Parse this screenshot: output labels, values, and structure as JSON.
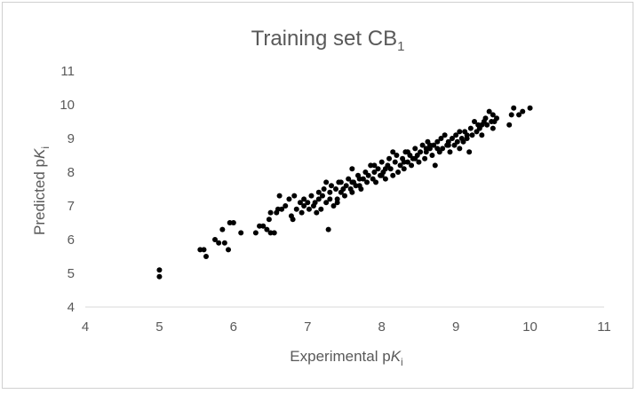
{
  "chart_data": {
    "type": "scatter",
    "title": "Training set CB",
    "title_sub": "1",
    "xlabel": "Experimental p",
    "xlabel_italic": "K",
    "xlabel_sub": "i",
    "ylabel": "Predicted p",
    "ylabel_italic": "K",
    "ylabel_sub": "i",
    "xlim": [
      4,
      11
    ],
    "ylim": [
      4,
      11
    ],
    "xticks": [
      "4",
      "5",
      "6",
      "7",
      "8",
      "9",
      "10",
      "11"
    ],
    "yticks": [
      "4",
      "5",
      "6",
      "7",
      "8",
      "9",
      "10",
      "11"
    ],
    "grid": false,
    "legend": "none",
    "marker_color": "#000000",
    "axis_color": "#d9d9d9",
    "points": [
      [
        5.0,
        5.1
      ],
      [
        5.0,
        4.9
      ],
      [
        5.55,
        5.7
      ],
      [
        5.6,
        5.7
      ],
      [
        5.63,
        5.5
      ],
      [
        5.75,
        6.0
      ],
      [
        5.8,
        5.9
      ],
      [
        5.85,
        6.3
      ],
      [
        5.88,
        5.9
      ],
      [
        5.93,
        5.7
      ],
      [
        5.95,
        6.5
      ],
      [
        6.0,
        6.5
      ],
      [
        6.1,
        6.2
      ],
      [
        6.3,
        6.2
      ],
      [
        6.35,
        6.4
      ],
      [
        6.4,
        6.4
      ],
      [
        6.45,
        6.3
      ],
      [
        6.48,
        6.6
      ],
      [
        6.5,
        6.8
      ],
      [
        6.5,
        6.2
      ],
      [
        6.55,
        6.2
      ],
      [
        6.58,
        6.8
      ],
      [
        6.6,
        6.9
      ],
      [
        6.62,
        7.3
      ],
      [
        6.65,
        6.9
      ],
      [
        6.7,
        7.0
      ],
      [
        6.75,
        7.2
      ],
      [
        6.78,
        6.7
      ],
      [
        6.8,
        6.6
      ],
      [
        6.82,
        7.3
      ],
      [
        6.85,
        6.9
      ],
      [
        6.9,
        7.1
      ],
      [
        6.92,
        6.8
      ],
      [
        6.95,
        7.0
      ],
      [
        7.0,
        7.1
      ],
      [
        7.02,
        6.9
      ],
      [
        7.05,
        7.3
      ],
      [
        7.08,
        7.0
      ],
      [
        7.1,
        7.1
      ],
      [
        7.12,
        6.8
      ],
      [
        7.15,
        7.2
      ],
      [
        7.18,
        6.9
      ],
      [
        7.2,
        7.3
      ],
      [
        7.22,
        7.5
      ],
      [
        7.25,
        7.7
      ],
      [
        7.25,
        7.1
      ],
      [
        7.28,
        6.3
      ],
      [
        7.3,
        7.4
      ],
      [
        7.3,
        7.2
      ],
      [
        7.32,
        7.6
      ],
      [
        7.35,
        7.0
      ],
      [
        7.38,
        7.5
      ],
      [
        7.4,
        7.2
      ],
      [
        7.42,
        7.7
      ],
      [
        7.45,
        7.4
      ],
      [
        7.48,
        7.5
      ],
      [
        7.5,
        7.3
      ],
      [
        7.52,
        7.6
      ],
      [
        7.55,
        7.8
      ],
      [
        7.58,
        7.5
      ],
      [
        7.6,
        7.4
      ],
      [
        7.6,
        8.1
      ],
      [
        7.62,
        7.7
      ],
      [
        7.65,
        7.6
      ],
      [
        7.68,
        7.9
      ],
      [
        7.7,
        7.6
      ],
      [
        7.72,
        7.5
      ],
      [
        7.75,
        7.8
      ],
      [
        7.78,
        8.0
      ],
      [
        7.8,
        7.7
      ],
      [
        7.82,
        7.9
      ],
      [
        7.85,
        8.2
      ],
      [
        7.88,
        7.8
      ],
      [
        7.9,
        8.0
      ],
      [
        7.92,
        7.7
      ],
      [
        7.95,
        8.1
      ],
      [
        7.98,
        7.9
      ],
      [
        8.0,
        8.3
      ],
      [
        8.02,
        8.0
      ],
      [
        8.05,
        7.8
      ],
      [
        8.08,
        8.2
      ],
      [
        8.1,
        8.4
      ],
      [
        8.12,
        8.1
      ],
      [
        8.15,
        7.9
      ],
      [
        8.18,
        8.3
      ],
      [
        8.2,
        8.5
      ],
      [
        8.22,
        8.0
      ],
      [
        8.25,
        8.2
      ],
      [
        8.28,
        8.4
      ],
      [
        8.3,
        8.1
      ],
      [
        8.32,
        8.6
      ],
      [
        8.35,
        8.3
      ],
      [
        8.38,
        8.5
      ],
      [
        8.4,
        8.2
      ],
      [
        8.42,
        8.4
      ],
      [
        8.45,
        8.7
      ],
      [
        8.48,
        8.5
      ],
      [
        8.5,
        8.3
      ],
      [
        8.52,
        8.6
      ],
      [
        8.55,
        8.8
      ],
      [
        8.58,
        8.4
      ],
      [
        8.6,
        8.6
      ],
      [
        8.62,
        8.9
      ],
      [
        8.65,
        8.7
      ],
      [
        8.68,
        8.5
      ],
      [
        8.7,
        8.8
      ],
      [
        8.72,
        8.2
      ],
      [
        8.75,
        8.9
      ],
      [
        8.78,
        8.6
      ],
      [
        8.8,
        9.0
      ],
      [
        8.82,
        8.7
      ],
      [
        8.85,
        9.1
      ],
      [
        8.88,
        8.8
      ],
      [
        8.9,
        8.9
      ],
      [
        8.92,
        8.6
      ],
      [
        8.95,
        9.0
      ],
      [
        8.98,
        8.8
      ],
      [
        9.0,
        9.1
      ],
      [
        9.02,
        8.9
      ],
      [
        9.05,
        8.7
      ],
      [
        9.08,
        9.0
      ],
      [
        9.1,
        8.9
      ],
      [
        9.12,
        9.2
      ],
      [
        9.15,
        9.0
      ],
      [
        9.18,
        8.6
      ],
      [
        9.2,
        9.3
      ],
      [
        9.22,
        9.1
      ],
      [
        9.25,
        9.5
      ],
      [
        9.28,
        9.2
      ],
      [
        9.3,
        9.4
      ],
      [
        9.32,
        9.3
      ],
      [
        9.35,
        9.1
      ],
      [
        9.38,
        9.5
      ],
      [
        9.4,
        9.6
      ],
      [
        9.42,
        9.4
      ],
      [
        9.45,
        9.8
      ],
      [
        9.48,
        9.5
      ],
      [
        9.5,
        9.7
      ],
      [
        9.5,
        9.3
      ],
      [
        9.52,
        9.5
      ],
      [
        9.55,
        9.6
      ],
      [
        9.72,
        9.4
      ],
      [
        9.75,
        9.7
      ],
      [
        9.78,
        9.9
      ],
      [
        9.85,
        9.7
      ],
      [
        9.9,
        9.8
      ],
      [
        10.0,
        9.9
      ],
      [
        7.4,
        7.1
      ],
      [
        7.7,
        7.8
      ],
      [
        8.0,
        7.9
      ],
      [
        8.3,
        8.3
      ],
      [
        8.6,
        8.7
      ],
      [
        8.9,
        8.8
      ],
      [
        7.15,
        7.4
      ],
      [
        7.45,
        7.7
      ],
      [
        7.9,
        8.2
      ],
      [
        8.15,
        8.6
      ],
      [
        8.45,
        8.4
      ],
      [
        8.75,
        8.7
      ],
      [
        9.05,
        9.2
      ],
      [
        9.35,
        9.4
      ],
      [
        6.95,
        7.2
      ],
      [
        7.6,
        7.7
      ],
      [
        8.05,
        8.1
      ],
      [
        8.35,
        8.6
      ],
      [
        8.65,
        8.8
      ],
      [
        9.15,
        9.1
      ]
    ]
  }
}
